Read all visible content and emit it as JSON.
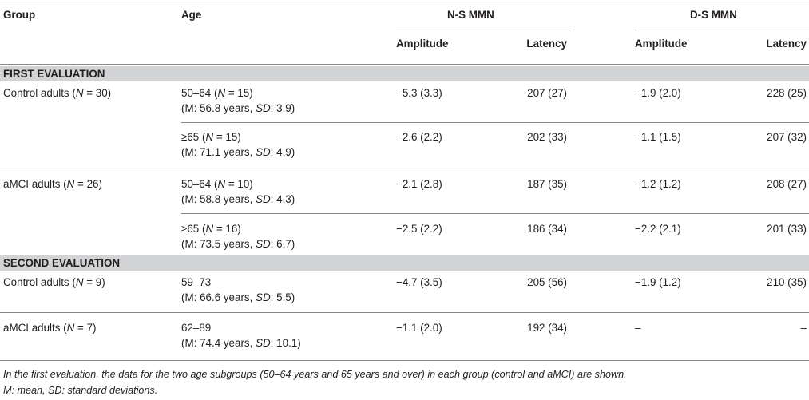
{
  "header": {
    "group": "Group",
    "age": "Age",
    "ns_mmn": "N-S MMN",
    "ds_mmn": "D-S MMN",
    "amplitude": "Amplitude",
    "latency": "Latency"
  },
  "sections": [
    {
      "title": "FIRST EVALUATION",
      "groups": [
        {
          "name": "Control adults",
          "n": "30",
          "rows": [
            {
              "age_range": "50–64",
              "age_n": "15",
              "mean": "56.8 years",
              "sd": "3.9",
              "ns_amp": "−5.3 (3.3)",
              "ns_lat": "207 (27)",
              "ds_amp": "−1.9 (2.0)",
              "ds_lat": "228 (25)"
            },
            {
              "age_range": "≥65",
              "age_n": "15",
              "mean": "71.1 years",
              "sd": "4.9",
              "ns_amp": "−2.6 (2.2)",
              "ns_lat": "202 (33)",
              "ds_amp": "−1.1 (1.5)",
              "ds_lat": "207 (32)"
            }
          ]
        },
        {
          "name": "aMCI adults",
          "n": "26",
          "rows": [
            {
              "age_range": "50–64",
              "age_n": "10",
              "mean": "58.8 years",
              "sd": "4.3",
              "ns_amp": "−2.1 (2.8)",
              "ns_lat": "187 (35)",
              "ds_amp": "−1.2 (1.2)",
              "ds_lat": "208 (27)"
            },
            {
              "age_range": "≥65",
              "age_n": "16",
              "mean": "73.5 years",
              "sd": "6.7",
              "ns_amp": "−2.5 (2.2)",
              "ns_lat": "186 (34)",
              "ds_amp": "−2.2 (2.1)",
              "ds_lat": "201 (33)"
            }
          ]
        }
      ]
    },
    {
      "title": "SECOND EVALUATION",
      "groups": [
        {
          "name": "Control adults",
          "n": "9",
          "rows": [
            {
              "age_range": "59–73",
              "mean": "66.6 years",
              "sd": "5.5",
              "ns_amp": "−4.7 (3.5)",
              "ns_lat": "205 (56)",
              "ds_amp": "−1.9 (1.2)",
              "ds_lat": "210 (35)"
            }
          ]
        },
        {
          "name": "aMCI adults",
          "n": "7",
          "rows": [
            {
              "age_range": "62–89",
              "mean": "74.4 years",
              "sd": "10.1",
              "ns_amp": "−1.1 (2.0)",
              "ns_lat": "192 (34)",
              "ds_amp": "–",
              "ds_lat": "–"
            }
          ]
        }
      ]
    }
  ],
  "labels": {
    "n_symbol": "N",
    "equals": " = ",
    "m_prefix": "M: ",
    "sd_symbol": "SD",
    "colon": ": "
  },
  "footnotes": [
    "In the first evaluation, the data for the two age subgroups (50–64 years and 65 years and over) in each group (control and aMCI) are shown.",
    "M: mean, SD: standard deviations."
  ],
  "colors": {
    "band": "#d2d3d5",
    "rule": "#8a8a8a",
    "text": "#231f20"
  }
}
